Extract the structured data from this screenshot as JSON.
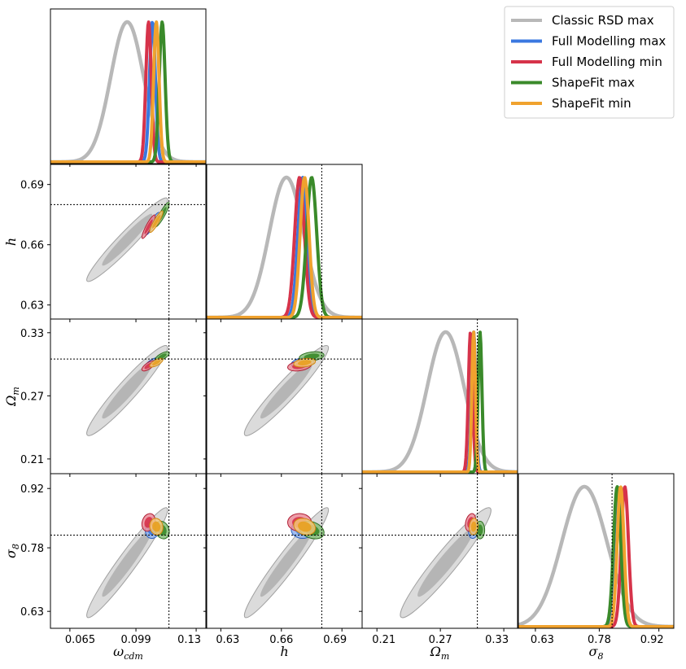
{
  "chart_data": {
    "type": "corner",
    "parameters": [
      {
        "key": "wcdm",
        "label": "ω",
        "sub": "cdm",
        "range": [
          0.055,
          0.135
        ],
        "ticks": [
          "0.065",
          "0.099",
          "0.13"
        ],
        "tick_values": [
          0.065,
          0.099,
          0.13
        ],
        "truth": 0.116
      },
      {
        "key": "h",
        "label": "h",
        "sub": "",
        "range": [
          0.623,
          0.7
        ],
        "ticks": [
          "0.63",
          "0.66",
          "0.69"
        ],
        "tick_values": [
          0.63,
          0.66,
          0.69
        ],
        "truth": 0.68
      },
      {
        "key": "Om",
        "label": "Ω",
        "sub": "m",
        "range": [
          0.196,
          0.343
        ],
        "ticks": [
          "0.21",
          "0.27",
          "0.33"
        ],
        "tick_values": [
          0.21,
          0.27,
          0.33
        ],
        "truth": 0.305
      },
      {
        "key": "s8",
        "label": "σ",
        "sub": "8",
        "range": [
          0.59,
          0.955
        ],
        "ticks": [
          "0.63",
          "0.78",
          "0.92"
        ],
        "tick_values": [
          0.63,
          0.78,
          0.92
        ],
        "truth": 0.81
      }
    ],
    "series": [
      {
        "name": "Classic RSD max",
        "color": "#b8b8b8",
        "fill_inner": "#b0b0b0",
        "fill_outer": "#d5d5d5",
        "edge": "#a0a0a0",
        "mean": [
          0.0945,
          0.6625,
          0.275,
          0.745
        ],
        "sd": [
          0.0085,
          0.0085,
          0.0175,
          0.053
        ],
        "corr": {
          "0-1": 0.96,
          "0-2": 0.95,
          "0-3": 0.96,
          "1-2": 0.95,
          "1-3": 0.96,
          "2-3": 0.95
        }
      },
      {
        "name": "Full Modelling max",
        "color": "#3a78e0",
        "fill_inner": "#3a78e0",
        "fill_outer": "#8fb1ec",
        "edge": "#2a5fc0",
        "mean": [
          0.1075,
          0.6705,
          0.3015,
          0.823
        ],
        "sd": [
          0.0015,
          0.0023,
          0.002,
          0.0085
        ],
        "corr": {
          "0-1": 0.9,
          "0-2": 0.7,
          "0-3": 0.1,
          "1-2": 0.3,
          "1-3": 0.0,
          "2-3": 0.2
        }
      },
      {
        "name": "Full Modelling min",
        "color": "#d6334a",
        "fill_inner": "#d6334a",
        "fill_outer": "#ea8c99",
        "edge": "#b01e34",
        "mean": [
          0.1055,
          0.669,
          0.2985,
          0.84
        ],
        "sd": [
          0.0014,
          0.0024,
          0.002,
          0.0085
        ],
        "corr": {
          "0-1": 0.9,
          "0-2": 0.7,
          "0-3": 0.2,
          "1-2": 0.3,
          "1-3": 0.0,
          "2-3": 0.3
        }
      },
      {
        "name": "ShapeFit max",
        "color": "#3a8a2a",
        "fill_inner": "#3a8a2a",
        "fill_outer": "#85bd78",
        "edge": "#2c6e1f",
        "mean": [
          0.1125,
          0.675,
          0.3075,
          0.822
        ],
        "sd": [
          0.0015,
          0.0025,
          0.0018,
          0.0085
        ],
        "corr": {
          "0-1": 0.9,
          "0-2": 0.7,
          "0-3": -0.2,
          "1-2": 0.3,
          "1-3": -0.3,
          "2-3": 0.0
        }
      },
      {
        "name": "ShapeFit min",
        "color": "#f0a22e",
        "fill_inner": "#e8a020",
        "fill_outer": "#f4c77a",
        "edge": "#d08810",
        "mean": [
          0.1095,
          0.6715,
          0.3015,
          0.83
        ],
        "sd": [
          0.0014,
          0.0022,
          0.0017,
          0.008
        ],
        "corr": {
          "0-1": 0.9,
          "0-2": 0.7,
          "0-3": -0.1,
          "1-2": 0.3,
          "1-3": -0.2,
          "2-3": 0.1
        }
      }
    ],
    "legend": {
      "position": "top-right"
    },
    "truth_lines": true
  }
}
